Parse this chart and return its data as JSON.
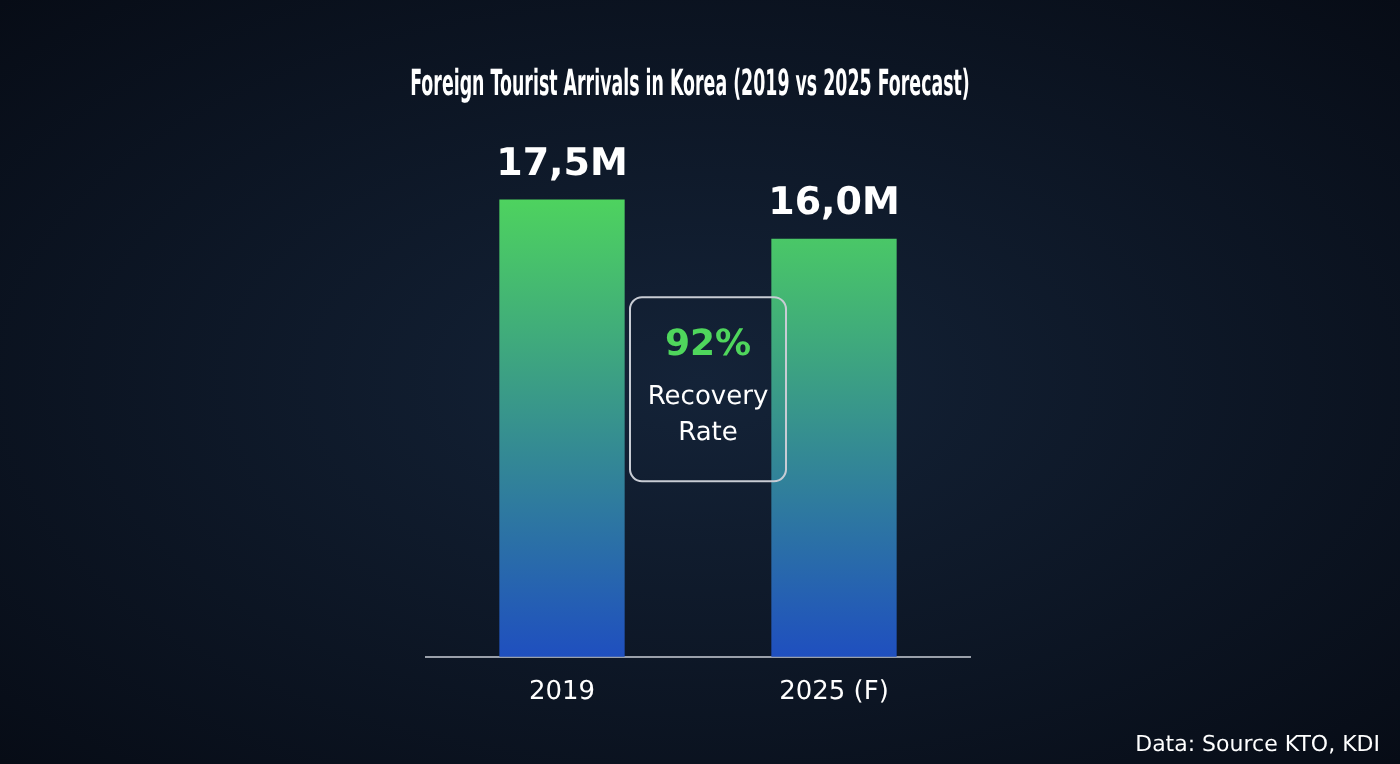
{
  "chart_data": {
    "type": "bar",
    "title": "Foreign Tourist Arrivals in Korea (2019 vs 2025 Forecast)",
    "categories": [
      "2019",
      "2025 (F)"
    ],
    "values": [
      17.5,
      16.0
    ],
    "value_labels": [
      "17,5M",
      "16,0M"
    ],
    "color": "#4fd65c",
    "relative": false,
    "grid": false,
    "legend": false,
    "annotations": [
      "92%",
      "Recovery Rate",
      "Data: Source KTO, KDI"
    ]
  }
}
